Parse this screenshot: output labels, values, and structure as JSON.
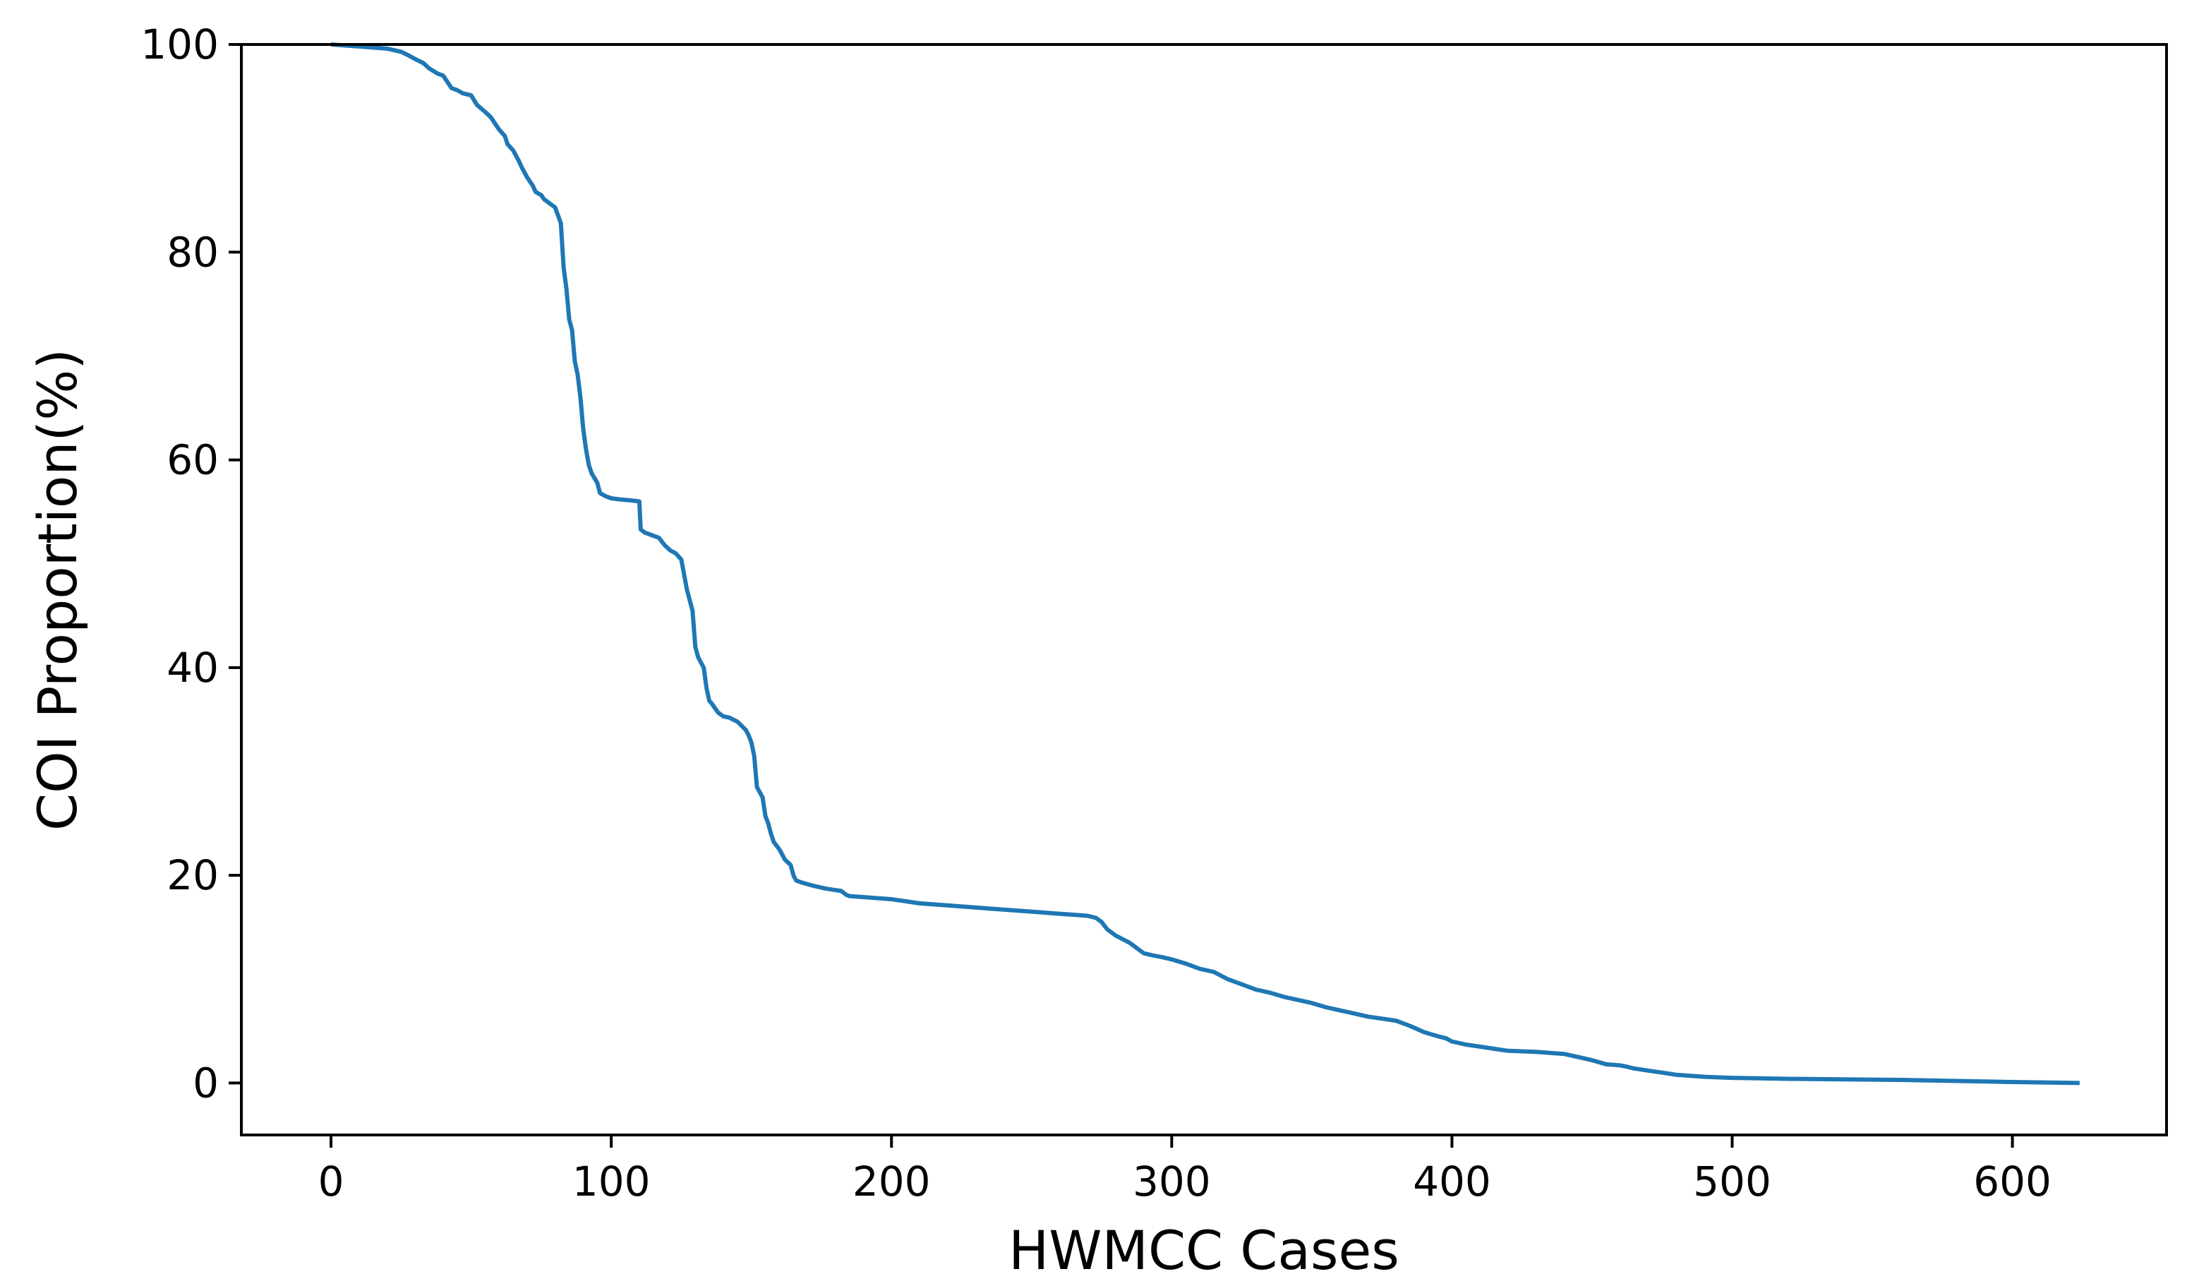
{
  "chart_data": {
    "type": "line",
    "title": "",
    "xlabel": "HWMCC Cases",
    "ylabel": "COI Proportion(%)",
    "xlim": [
      -32,
      655
    ],
    "ylim": [
      -5,
      100
    ],
    "xticks": [
      "0",
      "100",
      "200",
      "300",
      "400",
      "500",
      "600"
    ],
    "yticks": [
      "0",
      "20",
      "40",
      "60",
      "80",
      "100"
    ],
    "grid": false,
    "legend": "none",
    "line_color": "#1f77b4",
    "series": [
      {
        "x": [
          0,
          10,
          20,
          25,
          28,
          30,
          33,
          35,
          38,
          40,
          43,
          45,
          47,
          50,
          52,
          55,
          57,
          60,
          62,
          63,
          65,
          67,
          68,
          70,
          72,
          73,
          75,
          76,
          78,
          80,
          82,
          83,
          84,
          85,
          86,
          87,
          88,
          89,
          90,
          91,
          92,
          93,
          95,
          96,
          98,
          100,
          103,
          107,
          110,
          110.5,
          112,
          114,
          117,
          119,
          121,
          123,
          125,
          127,
          128,
          129,
          130,
          131,
          132,
          133,
          134,
          135,
          136,
          138,
          139,
          140,
          142,
          145,
          148,
          149,
          150,
          151,
          152,
          153,
          154,
          155,
          156,
          157,
          158,
          160,
          162,
          164,
          165,
          166,
          168,
          172,
          177,
          182,
          184,
          185,
          190,
          200,
          205,
          210,
          220,
          230,
          240,
          250,
          260,
          270,
          273,
          275,
          277,
          280,
          285,
          290,
          293,
          297,
          300,
          305,
          310,
          315,
          320,
          325,
          330,
          335,
          340,
          345,
          350,
          355,
          360,
          365,
          370,
          375,
          380,
          385,
          390,
          395,
          398,
          400,
          405,
          410,
          415,
          420,
          430,
          440,
          445,
          450,
          455,
          460,
          462,
          465,
          470,
          475,
          480,
          490,
          500,
          510,
          520,
          540,
          560,
          580,
          600,
          624
        ],
        "y": [
          100,
          99.8,
          99.6,
          99.3,
          98.9,
          98.6,
          98.2,
          97.7,
          97.2,
          97,
          95.8,
          95.6,
          95.3,
          95.1,
          94.2,
          93.5,
          93,
          91.8,
          91.2,
          90.4,
          89.8,
          88.8,
          88.2,
          87.2,
          86.4,
          85.8,
          85.5,
          85.1,
          84.7,
          84.3,
          82.8,
          78.5,
          76.5,
          73.5,
          72.5,
          69.5,
          68.2,
          66,
          63,
          61,
          59.5,
          58.7,
          57.8,
          56.8,
          56.5,
          56.3,
          56.2,
          56.1,
          56,
          53.3,
          53,
          52.8,
          52.5,
          51.8,
          51.3,
          51,
          50.4,
          47.5,
          46.5,
          45.5,
          42,
          41,
          40.5,
          40,
          38,
          36.8,
          36.5,
          35.7,
          35.5,
          35.3,
          35.2,
          34.8,
          34,
          33.5,
          32.8,
          31.5,
          28.5,
          28,
          27.5,
          25.7,
          25,
          24,
          23.2,
          22.5,
          21.5,
          21,
          20,
          19.5,
          19.3,
          19,
          18.7,
          18.5,
          18.1,
          18,
          17.9,
          17.7,
          17.5,
          17.3,
          17.1,
          16.9,
          16.7,
          16.5,
          16.3,
          16.1,
          15.9,
          15.5,
          14.8,
          14.2,
          13.5,
          12.5,
          12.3,
          12.1,
          11.9,
          11.5,
          11,
          10.7,
          10,
          9.5,
          9,
          8.7,
          8.3,
          8,
          7.7,
          7.3,
          7,
          6.7,
          6.4,
          6.2,
          6,
          5.5,
          4.9,
          4.5,
          4.3,
          4,
          3.7,
          3.5,
          3.3,
          3.1,
          3,
          2.8,
          2.5,
          2.2,
          1.8,
          1.7,
          1.6,
          1.4,
          1.2,
          1,
          0.8,
          0.6,
          0.5,
          0.45,
          0.4,
          0.35,
          0.3,
          0.2,
          0.1,
          0
        ]
      }
    ]
  }
}
